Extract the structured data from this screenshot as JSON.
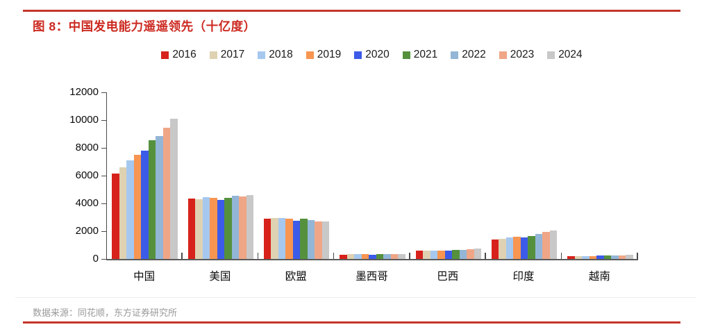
{
  "figure": {
    "title": "图 8：中国发电能力遥遥领先（十亿度）",
    "source": "数据来源：同花顺，东方证券研究所"
  },
  "colors": {
    "accent_rule_red": "#c43529",
    "title_red": "#cc2a21",
    "source_gray": "#999999",
    "axis_dark": "#4a4a4a"
  },
  "chart_data": {
    "type": "bar",
    "title": "中国发电能力遥遥领先",
    "unit": "十亿度",
    "categories": [
      "中国",
      "美国",
      "欧盟",
      "墨西哥",
      "巴西",
      "印度",
      "越南"
    ],
    "series": [
      {
        "name": "2016",
        "color": "#d7221b",
        "values": [
          6142,
          4332,
          2914,
          319,
          579,
          1404,
          179
        ]
      },
      {
        "name": "2017",
        "color": "#ded2b2",
        "values": [
          6604,
          4282,
          2941,
          329,
          588,
          1471,
          192
        ]
      },
      {
        "name": "2018",
        "color": "#a6c8ef",
        "values": [
          7111,
          4434,
          2930,
          335,
          601,
          1561,
          209
        ]
      },
      {
        "name": "2019",
        "color": "#f79551",
        "values": [
          7503,
          4386,
          2880,
          337,
          626,
          1603,
          227
        ]
      },
      {
        "name": "2020",
        "color": "#3c5be8",
        "values": [
          7779,
          4260,
          2756,
          313,
          621,
          1533,
          235
        ]
      },
      {
        "name": "2021",
        "color": "#55913d",
        "values": [
          8534,
          4406,
          2893,
          336,
          656,
          1669,
          245
        ]
      },
      {
        "name": "2022",
        "color": "#93b6d7",
        "values": [
          8849,
          4548,
          2790,
          340,
          677,
          1814,
          250
        ]
      },
      {
        "name": "2023",
        "color": "#efa687",
        "values": [
          9456,
          4494,
          2680,
          345,
          708,
          1949,
          276
        ]
      },
      {
        "name": "2024",
        "color": "#c8c8c8",
        "values": [
          10087,
          4615,
          2705,
          352,
          745,
          2030,
          310
        ]
      }
    ],
    "ylim": [
      0,
      12000
    ],
    "yticks": [
      0,
      2000,
      4000,
      6000,
      8000,
      10000,
      12000
    ],
    "legend_position": "top",
    "grid": false
  }
}
